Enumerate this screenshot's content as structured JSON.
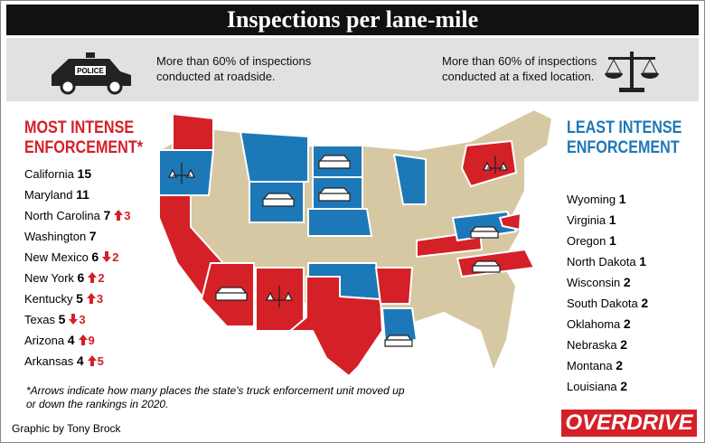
{
  "title": "Inspections per lane-mile",
  "legend": {
    "roadside": "More than 60% of inspections conducted at roadside.",
    "roadside_icon_label": "POLICE",
    "fixed": "More than 60% of inspections conducted at a fixed location."
  },
  "most": {
    "heading": "MOST INTENSE ENFORCEMENT*",
    "states": [
      {
        "name": "California",
        "value": 15
      },
      {
        "name": "Maryland",
        "value": 11
      },
      {
        "name": "North Carolina",
        "value": 7,
        "change": {
          "dir": "up",
          "by": 3
        }
      },
      {
        "name": "Washington",
        "value": 7
      },
      {
        "name": "New Mexico",
        "value": 6,
        "change": {
          "dir": "down",
          "by": 2
        }
      },
      {
        "name": "New York",
        "value": 6,
        "change": {
          "dir": "up",
          "by": 2
        }
      },
      {
        "name": "Kentucky",
        "value": 5,
        "change": {
          "dir": "up",
          "by": 3
        }
      },
      {
        "name": "Texas",
        "value": 5,
        "change": {
          "dir": "down",
          "by": 3
        }
      },
      {
        "name": "Arizona",
        "value": 4,
        "change": {
          "dir": "up",
          "by": 9
        }
      },
      {
        "name": "Arkansas",
        "value": 4,
        "change": {
          "dir": "up",
          "by": 5
        }
      }
    ]
  },
  "least": {
    "heading": "LEAST INTENSE ENFORCEMENT",
    "states": [
      {
        "name": "Wyoming",
        "value": 1
      },
      {
        "name": "Virginia",
        "value": 1
      },
      {
        "name": "Oregon",
        "value": 1
      },
      {
        "name": "North Dakota",
        "value": 1
      },
      {
        "name": "Wisconsin",
        "value": 2
      },
      {
        "name": "South Dakota",
        "value": 2
      },
      {
        "name": "Oklahoma",
        "value": 2
      },
      {
        "name": "Nebraska",
        "value": 2
      },
      {
        "name": "Montana",
        "value": 2
      },
      {
        "name": "Louisiana",
        "value": 2
      }
    ]
  },
  "footnote": "*Arrows indicate how many places the state's truck enforcement unit moved up or down the rankings in 2020.",
  "credit": "Graphic by Tony Brock",
  "brand": "OVERDRIVE"
}
